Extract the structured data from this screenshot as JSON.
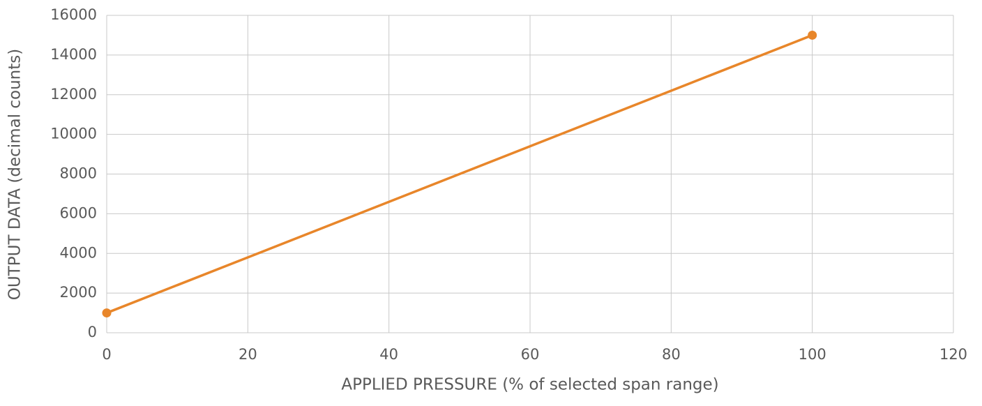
{
  "chart_data": {
    "type": "line",
    "x_label": "APPLIED PRESSURE (% of selected span range)",
    "y_label": "OUTPUT DATA (decimal counts)",
    "x": [
      0,
      100
    ],
    "values": [
      1000,
      15000
    ],
    "color": "#e8862a",
    "xlim": [
      0,
      120
    ],
    "xticks": [
      0,
      20,
      40,
      60,
      80,
      100,
      120
    ],
    "ylim": [
      0,
      16000
    ],
    "yticks": [
      0,
      2000,
      4000,
      6000,
      8000,
      10000,
      12000,
      14000,
      16000
    ],
    "grid": true,
    "markers": true
  }
}
